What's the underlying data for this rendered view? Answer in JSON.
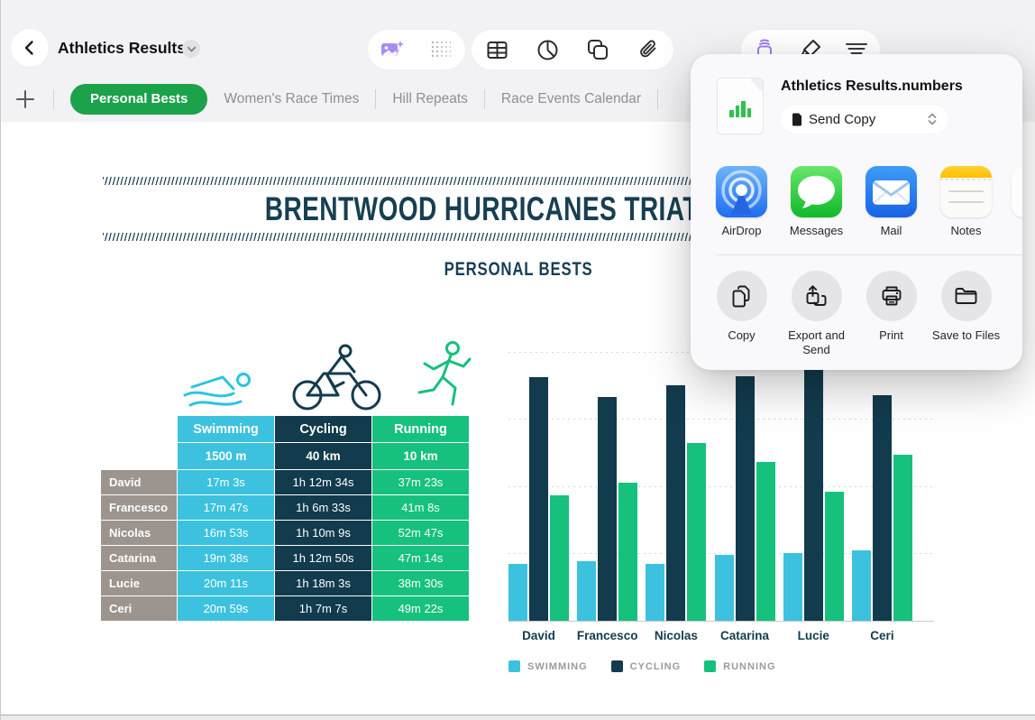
{
  "window": {
    "title": "Athletics Results",
    "back_icon": "chevron-left",
    "title_menu_icon": "chevron-down"
  },
  "toolbar": {
    "icons": [
      "ai-photo-icon",
      "dots-grid-icon",
      "table-icon",
      "pie-chart-icon",
      "shapes-icon",
      "paperclip-icon",
      "share-icon",
      "format-brush-icon",
      "more-lines-icon"
    ],
    "active_icon": "share-icon",
    "accent_purple": "#9d7df2"
  },
  "tabs": {
    "add_label": "+",
    "items": [
      {
        "label": "Personal Bests",
        "active": true
      },
      {
        "label": "Women's Race Times",
        "active": false
      },
      {
        "label": "Hill Repeats",
        "active": false
      },
      {
        "label": "Race Events Calendar",
        "active": false
      }
    ]
  },
  "sheet": {
    "title": "BRENTWOOD HURRICANES TRIATHLON",
    "subtitle": "PERSONAL BESTS",
    "table": {
      "columns": [
        {
          "label": "Swimming",
          "distance": "1500 m",
          "icon": "swimmer-icon"
        },
        {
          "label": "Cycling",
          "distance": "40 km",
          "icon": "cyclist-icon"
        },
        {
          "label": "Running",
          "distance": "10 km",
          "icon": "runner-icon"
        }
      ],
      "rows": [
        {
          "name": "David",
          "swimming": "17m 3s",
          "cycling": "1h 12m 34s",
          "running": "37m 23s"
        },
        {
          "name": "Francesco",
          "swimming": "17m 47s",
          "cycling": "1h 6m 33s",
          "running": "41m 8s"
        },
        {
          "name": "Nicolas",
          "swimming": "16m 53s",
          "cycling": "1h 10m 9s",
          "running": "52m 47s"
        },
        {
          "name": "Catarina",
          "swimming": "19m 38s",
          "cycling": "1h 12m 50s",
          "running": "47m 14s"
        },
        {
          "name": "Lucie",
          "swimming": "20m 11s",
          "cycling": "1h 18m 3s",
          "running": "38m 30s"
        },
        {
          "name": "Ceri",
          "swimming": "20m 59s",
          "cycling": "1h 7m 7s",
          "running": "49m 22s"
        }
      ]
    }
  },
  "chart_data": {
    "type": "bar",
    "title": "",
    "categories": [
      "David",
      "Francesco",
      "Nicolas",
      "Catarina",
      "Lucie",
      "Ceri"
    ],
    "series": [
      {
        "name": "Swimming",
        "legend": "SWIMMING",
        "color_key": "swimming",
        "values_minutes": [
          17.05,
          17.78,
          16.88,
          19.63,
          20.18,
          20.98
        ]
      },
      {
        "name": "Cycling",
        "legend": "CYCLING",
        "color_key": "cycling",
        "values_minutes": [
          72.57,
          66.55,
          70.15,
          72.83,
          78.05,
          67.12
        ]
      },
      {
        "name": "Running",
        "legend": "RUNNING",
        "color_key": "running",
        "values_minutes": [
          37.38,
          41.13,
          52.78,
          47.23,
          38.5,
          49.37
        ]
      }
    ],
    "ylim": [
      0,
      80
    ],
    "y_unit": "minutes",
    "gridlines": "dotted horizontal every 20 minutes, no tick labels shown",
    "legend_position": "bottom-left"
  },
  "share_popover": {
    "file_icon": "numbers-document-icon",
    "file_title": "Athletics Results.numbers",
    "send_mode": "Send Copy",
    "send_mode_icons": [
      "document-icon",
      "chevron-up-down-icon"
    ],
    "apps": [
      {
        "name": "AirDrop",
        "icon": "airdrop-icon"
      },
      {
        "name": "Messages",
        "icon": "messages-icon"
      },
      {
        "name": "Mail",
        "icon": "mail-icon"
      },
      {
        "name": "Notes",
        "icon": "notes-icon"
      }
    ],
    "actions": [
      {
        "label": "Copy",
        "icon": "copy-icon"
      },
      {
        "label": "Export and Send",
        "icon": "export-icon"
      },
      {
        "label": "Print",
        "icon": "printer-icon"
      },
      {
        "label": "Save to Files",
        "icon": "folder-icon"
      }
    ]
  },
  "colors": {
    "swimming": "#3cc2de",
    "cycling": "#123b4d",
    "running": "#16c17d",
    "row_label_gray": "#9c948e",
    "title_navy": "#173f52",
    "tab_green": "#1ba24b",
    "accent_purple": "#9d7df2",
    "chrome_bg": "#f2f1f4"
  }
}
